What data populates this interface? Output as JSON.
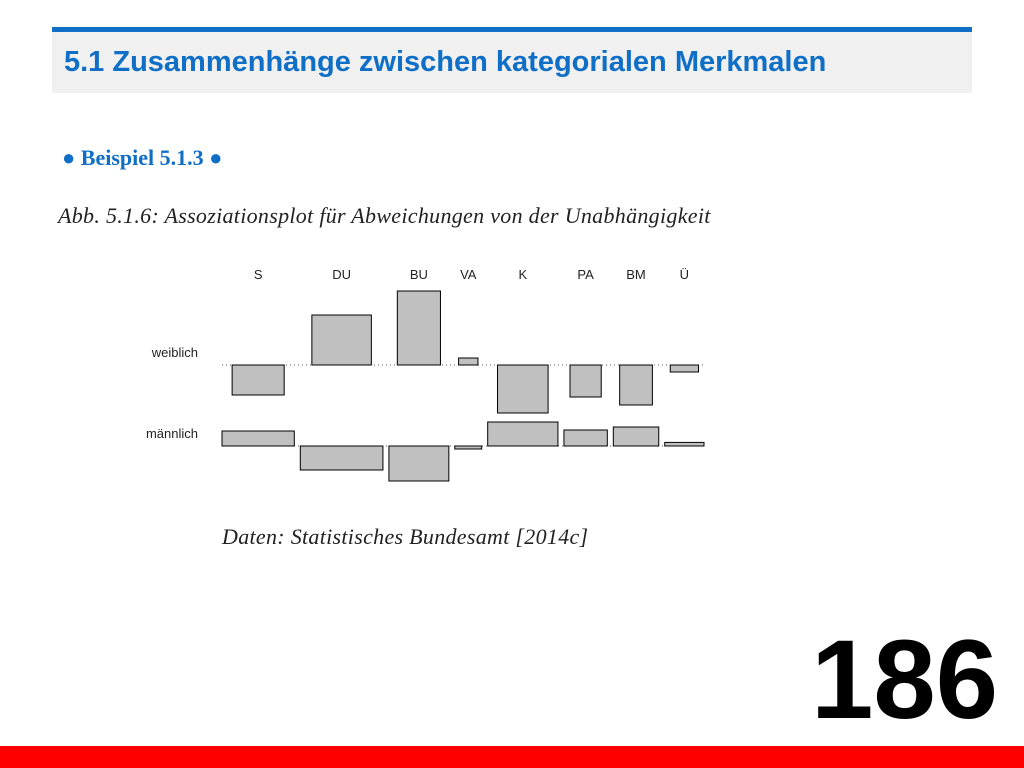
{
  "header": {
    "title": "5.1 Zusammenhänge zwischen kategorialen Merkmalen"
  },
  "example_label": "● Beispiel 5.1.3 ●",
  "figure_caption": "Abb. 5.1.6: Assoziationsplot für Abweichungen von der Unabhängigkeit",
  "data_source": "Daten: Statistisches Bundesamt [2014c]",
  "page_number": "186",
  "colors": {
    "accent": "#0f6fc6",
    "header_bg": "#f0f0f0",
    "footer": "#ff0000",
    "bar_fill": "#c0c0c0",
    "bar_stroke": "#000000"
  },
  "chart_data": {
    "type": "association-plot",
    "title": "",
    "xlabel": "",
    "ylabel": "",
    "categories": [
      "S",
      "DU",
      "BU",
      "VA",
      "K",
      "PA",
      "BM",
      "Ü"
    ],
    "rows": [
      "weiblich",
      "männlich"
    ],
    "column_weight": [
      35,
      40,
      29,
      13,
      34,
      21,
      22,
      19
    ],
    "series": [
      {
        "values": [
          -1.5,
          2.5,
          3.7,
          0.35,
          -2.4,
          -1.6,
          -2.0,
          -0.35
        ]
      },
      {
        "values": [
          0.75,
          -1.2,
          -1.75,
          -0.15,
          1.2,
          0.8,
          0.95,
          0.18
        ]
      }
    ]
  }
}
